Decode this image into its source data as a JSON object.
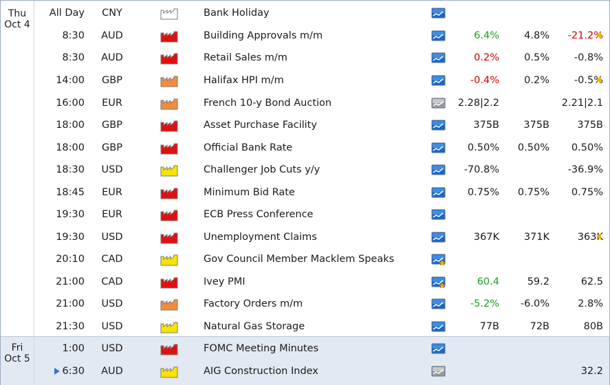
{
  "days": [
    {
      "weekday": "Thu",
      "date": "Oct 4"
    },
    {
      "weekday": "Fri",
      "date": "Oct 5"
    }
  ],
  "impact_colors": {
    "holiday": "#ffffff",
    "high": "#e01010",
    "medium": "#f28c3c",
    "low": "#f7e400"
  },
  "rows": [
    {
      "time": "All Day",
      "currency": "CNY",
      "impact": "holiday",
      "event": "Bank Holiday",
      "detail_icon": "chart-detail-icon",
      "actual": "",
      "actual_color": "",
      "forecast": "",
      "previous": "",
      "revised_arrow": false
    },
    {
      "time": "8:30",
      "currency": "AUD",
      "impact": "high",
      "event": "Building Approvals m/m",
      "detail_icon": "chart-detail-icon",
      "actual": "6.4%",
      "actual_color": "green",
      "forecast": "4.8%",
      "previous": "-21.2%",
      "previous_color": "red",
      "revised_arrow": true
    },
    {
      "time": "8:30",
      "currency": "AUD",
      "impact": "high",
      "event": "Retail Sales m/m",
      "detail_icon": "chart-detail-icon",
      "actual": "0.2%",
      "actual_color": "red",
      "forecast": "0.5%",
      "previous": "-0.8%",
      "revised_arrow": false
    },
    {
      "time": "14:00",
      "currency": "GBP",
      "impact": "medium",
      "event": "Halifax HPI m/m",
      "detail_icon": "chart-detail-icon",
      "actual": "-0.4%",
      "actual_color": "red",
      "forecast": "0.2%",
      "previous": "-0.5%",
      "revised_arrow": true
    },
    {
      "time": "16:00",
      "currency": "EUR",
      "impact": "medium",
      "event": "French 10-y Bond Auction",
      "detail_icon": "grey-detail-icon",
      "actual": "2.28|2.2",
      "actual_color": "",
      "forecast": "",
      "previous": "2.21|2.1",
      "revised_arrow": false
    },
    {
      "time": "18:00",
      "currency": "GBP",
      "impact": "high",
      "event": "Asset Purchase Facility",
      "detail_icon": "chart-detail-icon",
      "actual": "375B",
      "actual_color": "",
      "forecast": "375B",
      "previous": "375B",
      "revised_arrow": false
    },
    {
      "time": "18:00",
      "currency": "GBP",
      "impact": "high",
      "event": "Official Bank Rate",
      "detail_icon": "chart-detail-icon",
      "actual": "0.50%",
      "actual_color": "",
      "forecast": "0.50%",
      "previous": "0.50%",
      "revised_arrow": false
    },
    {
      "time": "18:30",
      "currency": "USD",
      "impact": "low",
      "event": "Challenger Job Cuts y/y",
      "detail_icon": "chart-detail-icon",
      "actual": "-70.8%",
      "actual_color": "",
      "forecast": "",
      "previous": "-36.9%",
      "revised_arrow": false
    },
    {
      "time": "18:45",
      "currency": "EUR",
      "impact": "high",
      "event": "Minimum Bid Rate",
      "detail_icon": "chart-detail-icon",
      "actual": "0.75%",
      "actual_color": "",
      "forecast": "0.75%",
      "previous": "0.75%",
      "revised_arrow": false
    },
    {
      "time": "19:30",
      "currency": "EUR",
      "impact": "high",
      "event": "ECB Press Conference",
      "detail_icon": "chart-detail-icon",
      "actual": "",
      "actual_color": "",
      "forecast": "",
      "previous": "",
      "revised_arrow": false
    },
    {
      "time": "19:30",
      "currency": "USD",
      "impact": "high",
      "event": "Unemployment Claims",
      "detail_icon": "chart-detail-icon",
      "actual": "367K",
      "actual_color": "",
      "forecast": "371K",
      "previous": "363K",
      "revised_arrow": true
    },
    {
      "time": "20:10",
      "currency": "CAD",
      "impact": "low",
      "event": "Gov Council Member Macklem Speaks",
      "detail_icon": "star-detail-icon",
      "actual": "",
      "actual_color": "",
      "forecast": "",
      "previous": "",
      "revised_arrow": false
    },
    {
      "time": "21:00",
      "currency": "CAD",
      "impact": "high",
      "event": "Ivey PMI",
      "detail_icon": "star-detail-icon",
      "actual": "60.4",
      "actual_color": "green",
      "forecast": "59.2",
      "previous": "62.5",
      "revised_arrow": false
    },
    {
      "time": "21:00",
      "currency": "USD",
      "impact": "medium",
      "event": "Factory Orders m/m",
      "detail_icon": "chart-detail-icon",
      "actual": "-5.2%",
      "actual_color": "green",
      "forecast": "-6.0%",
      "previous": "2.8%",
      "revised_arrow": false
    },
    {
      "time": "21:30",
      "currency": "USD",
      "impact": "low",
      "event": "Natural Gas Storage",
      "detail_icon": "chart-detail-icon",
      "actual": "77B",
      "actual_color": "",
      "forecast": "72B",
      "previous": "80B",
      "revised_arrow": false
    },
    {
      "time": "1:00",
      "currency": "USD",
      "impact": "high",
      "event": "FOMC Meeting Minutes",
      "detail_icon": "chart-detail-icon",
      "actual": "",
      "actual_color": "",
      "forecast": "",
      "previous": "",
      "revised_arrow": false
    },
    {
      "time": "6:30",
      "currency": "AUD",
      "impact": "low",
      "event": "AIG Construction Index",
      "detail_icon": "grey-detail-icon",
      "actual": "",
      "actual_color": "",
      "forecast": "",
      "previous": "32.2",
      "revised_arrow": false,
      "upnext": true
    }
  ]
}
